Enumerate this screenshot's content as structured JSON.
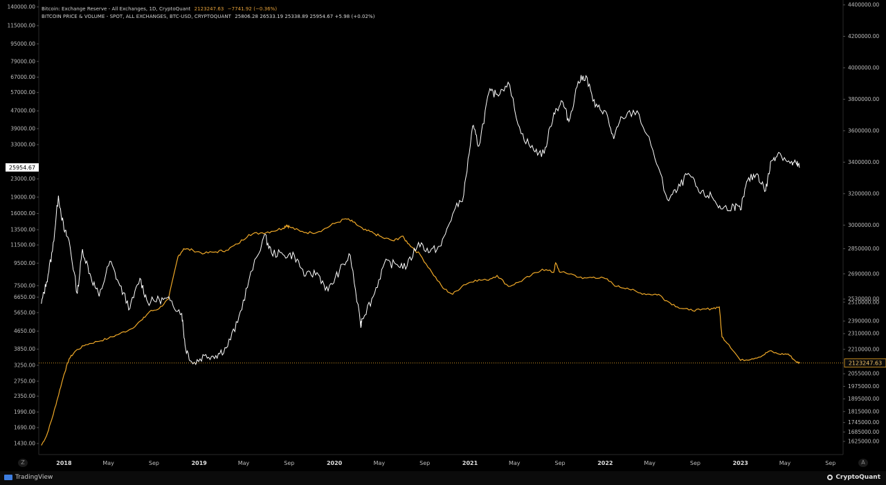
{
  "header": {
    "line1_label": "Bitcoin: Exchange Reserve - All Exchanges, 1D, CryptoQuant",
    "line1_value": "2123247.63",
    "line1_change": "−7741.92 (−0.36%)",
    "line2_label": "BITCOIN PRICE & VOLUME - SPOT, ALL EXCHANGES, BTC-USD, CRYPTOQUANT",
    "line2_values": "25806.28  26533.19  25338.89  25954.67  +5.98 (+0.02%)"
  },
  "footer": {
    "tradingview": "TradingView",
    "cryptoquant": "CryptoQuant",
    "left_btn": "Z",
    "right_btn": "A"
  },
  "colors": {
    "reserve": "#f0a928",
    "price": "#ffffff",
    "background": "#000000",
    "axis_text": "#bdbdbd"
  },
  "chart_data": {
    "type": "line",
    "x_ticks": [
      "2018",
      "May",
      "Sep",
      "2019",
      "May",
      "Sep",
      "2020",
      "May",
      "Sep",
      "2021",
      "May",
      "Sep",
      "2022",
      "May",
      "Sep",
      "2023",
      "May",
      "Sep"
    ],
    "left_axis_ticks": [
      "140000.00",
      "115000.00",
      "95000.00",
      "79000.00",
      "67000.00",
      "57000.00",
      "47000.00",
      "39000.00",
      "33000.00",
      "23000.00",
      "19000.00",
      "16000.00",
      "13500.00",
      "11500.00",
      "9500.00",
      "7500.00",
      "6650.00",
      "5650.00",
      "4650.00",
      "3850.00",
      "3250.00",
      "2750.00",
      "2350.00",
      "1990.00",
      "1690.00",
      "1430.00"
    ],
    "right_axis_ticks": [
      "4400000.00",
      "4200000.00",
      "4000000.00",
      "3800000.00",
      "3600000.00",
      "3400000.00",
      "3200000.00",
      "3000000.00",
      "2850000.00",
      "2690000.00",
      "2530000.00",
      "2510000.00",
      "2390000.00",
      "2310000.00",
      "2210000.00",
      "2055000.00",
      "1975000.00",
      "1895000.00",
      "1815000.00",
      "1745000.00",
      "1685000.00",
      "1625000.00"
    ],
    "price_label": "25954.67",
    "reserve_label": "2123247.63",
    "series": [
      {
        "name": "Bitcoin: Exchange Reserve - All Exchanges",
        "axis": "right",
        "points": [
          [
            "2017-11-01",
            1600000
          ],
          [
            "2017-11-15",
            1660000
          ],
          [
            "2017-12-01",
            1780000
          ],
          [
            "2017-12-15",
            1900000
          ],
          [
            "2018-01-01",
            2050000
          ],
          [
            "2018-01-15",
            2150000
          ],
          [
            "2018-02-01",
            2200000
          ],
          [
            "2018-03-01",
            2240000
          ],
          [
            "2018-04-01",
            2260000
          ],
          [
            "2018-05-01",
            2280000
          ],
          [
            "2018-06-01",
            2310000
          ],
          [
            "2018-07-01",
            2340000
          ],
          [
            "2018-08-01",
            2400000
          ],
          [
            "2018-08-20",
            2450000
          ],
          [
            "2018-09-15",
            2470000
          ],
          [
            "2018-10-10",
            2530000
          ],
          [
            "2018-11-05",
            2800000
          ],
          [
            "2018-11-20",
            2850000
          ],
          [
            "2018-12-15",
            2840000
          ],
          [
            "2019-01-15",
            2820000
          ],
          [
            "2019-02-15",
            2830000
          ],
          [
            "2019-03-15",
            2840000
          ],
          [
            "2019-04-15",
            2880000
          ],
          [
            "2019-05-15",
            2940000
          ],
          [
            "2019-06-15",
            2950000
          ],
          [
            "2019-07-15",
            2960000
          ],
          [
            "2019-08-15",
            2980000
          ],
          [
            "2019-08-25",
            3000000
          ],
          [
            "2019-09-01",
            2990000
          ],
          [
            "2019-10-01",
            2960000
          ],
          [
            "2019-11-01",
            2950000
          ],
          [
            "2019-12-01",
            2970000
          ],
          [
            "2020-01-01",
            3010000
          ],
          [
            "2020-02-01",
            3040000
          ],
          [
            "2020-02-20",
            3020000
          ],
          [
            "2020-03-20",
            2970000
          ],
          [
            "2020-04-15",
            2950000
          ],
          [
            "2020-05-10",
            2920000
          ],
          [
            "2020-06-10",
            2900000
          ],
          [
            "2020-07-01",
            2930000
          ],
          [
            "2020-07-20",
            2880000
          ],
          [
            "2020-08-20",
            2810000
          ],
          [
            "2020-09-20",
            2700000
          ],
          [
            "2020-10-20",
            2600000
          ],
          [
            "2020-11-15",
            2560000
          ],
          [
            "2020-12-15",
            2620000
          ],
          [
            "2021-01-15",
            2650000
          ],
          [
            "2021-02-15",
            2650000
          ],
          [
            "2021-03-15",
            2680000
          ],
          [
            "2021-04-15",
            2610000
          ],
          [
            "2021-05-15",
            2640000
          ],
          [
            "2021-06-15",
            2680000
          ],
          [
            "2021-07-15",
            2720000
          ],
          [
            "2021-08-15",
            2700000
          ],
          [
            "2021-08-20",
            2760000
          ],
          [
            "2021-09-01",
            2700000
          ],
          [
            "2021-10-01",
            2690000
          ],
          [
            "2021-11-01",
            2660000
          ],
          [
            "2021-12-01",
            2670000
          ],
          [
            "2022-01-01",
            2660000
          ],
          [
            "2022-02-01",
            2610000
          ],
          [
            "2022-03-01",
            2600000
          ],
          [
            "2022-04-01",
            2570000
          ],
          [
            "2022-05-01",
            2560000
          ],
          [
            "2022-05-25",
            2560000
          ],
          [
            "2022-06-15",
            2520000
          ],
          [
            "2022-07-15",
            2480000
          ],
          [
            "2022-08-15",
            2460000
          ],
          [
            "2022-09-15",
            2460000
          ],
          [
            "2022-10-15",
            2470000
          ],
          [
            "2022-11-05",
            2480000
          ],
          [
            "2022-11-12",
            2290000
          ],
          [
            "2022-12-01",
            2240000
          ],
          [
            "2023-01-01",
            2140000
          ],
          [
            "2023-02-01",
            2150000
          ],
          [
            "2023-03-01",
            2170000
          ],
          [
            "2023-03-20",
            2200000
          ],
          [
            "2023-04-15",
            2180000
          ],
          [
            "2023-05-10",
            2180000
          ],
          [
            "2023-06-01",
            2130000
          ],
          [
            "2023-06-10",
            2123247
          ]
        ]
      },
      {
        "name": "BITCOIN PRICE & VOLUME - SPOT",
        "axis": "left",
        "points": [
          [
            "2017-11-01",
            6200
          ],
          [
            "2017-11-15",
            7800
          ],
          [
            "2017-12-01",
            10800
          ],
          [
            "2017-12-17",
            19300
          ],
          [
            "2018-01-01",
            13500
          ],
          [
            "2018-01-15",
            12000
          ],
          [
            "2018-02-06",
            6900
          ],
          [
            "2018-02-20",
            11000
          ],
          [
            "2018-03-15",
            8200
          ],
          [
            "2018-04-06",
            6700
          ],
          [
            "2018-05-05",
            9700
          ],
          [
            "2018-06-01",
            7500
          ],
          [
            "2018-06-28",
            5900
          ],
          [
            "2018-07-25",
            8100
          ],
          [
            "2018-08-15",
            6300
          ],
          [
            "2018-09-15",
            6500
          ],
          [
            "2018-10-15",
            6400
          ],
          [
            "2018-11-15",
            5600
          ],
          [
            "2018-11-25",
            3900
          ],
          [
            "2018-12-15",
            3300
          ],
          [
            "2019-01-15",
            3600
          ],
          [
            "2019-02-15",
            3600
          ],
          [
            "2019-03-15",
            3900
          ],
          [
            "2019-04-15",
            5100
          ],
          [
            "2019-05-15",
            7900
          ],
          [
            "2019-06-26",
            12800
          ],
          [
            "2019-07-15",
            10600
          ],
          [
            "2019-08-15",
            10400
          ],
          [
            "2019-09-15",
            10300
          ],
          [
            "2019-10-15",
            8300
          ],
          [
            "2019-11-15",
            8600
          ],
          [
            "2019-12-15",
            7100
          ],
          [
            "2020-01-15",
            8800
          ],
          [
            "2020-02-13",
            10300
          ],
          [
            "2020-03-12",
            4900
          ],
          [
            "2020-03-15",
            5300
          ],
          [
            "2020-04-15",
            6700
          ],
          [
            "2020-05-15",
            9500
          ],
          [
            "2020-06-15",
            9400
          ],
          [
            "2020-07-15",
            9200
          ],
          [
            "2020-08-15",
            11800
          ],
          [
            "2020-09-15",
            10700
          ],
          [
            "2020-10-15",
            11400
          ],
          [
            "2020-11-15",
            15900
          ],
          [
            "2020-12-15",
            19400
          ],
          [
            "2021-01-08",
            40000
          ],
          [
            "2021-01-25",
            32500
          ],
          [
            "2021-02-21",
            57000
          ],
          [
            "2021-03-15",
            56000
          ],
          [
            "2021-04-14",
            63500
          ],
          [
            "2021-05-19",
            37000
          ],
          [
            "2021-06-22",
            31000
          ],
          [
            "2021-07-20",
            30000
          ],
          [
            "2021-08-15",
            46000
          ],
          [
            "2021-09-07",
            52000
          ],
          [
            "2021-09-25",
            42000
          ],
          [
            "2021-10-20",
            64000
          ],
          [
            "2021-11-10",
            68000
          ],
          [
            "2021-12-05",
            49000
          ],
          [
            "2022-01-01",
            47000
          ],
          [
            "2022-01-24",
            35000
          ],
          [
            "2022-02-15",
            44000
          ],
          [
            "2022-03-28",
            47000
          ],
          [
            "2022-05-10",
            31000
          ],
          [
            "2022-06-18",
            18500
          ],
          [
            "2022-07-15",
            20500
          ],
          [
            "2022-08-13",
            24400
          ],
          [
            "2022-09-15",
            19700
          ],
          [
            "2022-10-15",
            19200
          ],
          [
            "2022-11-09",
            16800
          ],
          [
            "2022-12-15",
            17300
          ],
          [
            "2023-01-01",
            16600
          ],
          [
            "2023-01-20",
            22600
          ],
          [
            "2023-02-15",
            24300
          ],
          [
            "2023-03-10",
            20300
          ],
          [
            "2023-03-25",
            27800
          ],
          [
            "2023-04-14",
            30400
          ],
          [
            "2023-05-15",
            27100
          ],
          [
            "2023-06-01",
            27000
          ],
          [
            "2023-06-10",
            25954.67
          ]
        ]
      }
    ]
  }
}
